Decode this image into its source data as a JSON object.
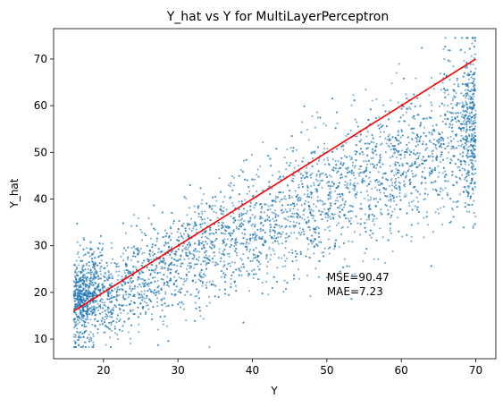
{
  "chart_data": {
    "type": "scatter",
    "title": "Y_hat vs Y for MultiLayerPerceptron",
    "xlabel": "Y",
    "ylabel": "Y_hat",
    "xlim": [
      13.3,
      72.7
    ],
    "ylim": [
      5.8,
      76.5
    ],
    "xticks": [
      20,
      30,
      40,
      50,
      60,
      70
    ],
    "yticks": [
      10,
      20,
      30,
      40,
      50,
      60,
      70
    ],
    "grid": false,
    "series": [
      {
        "kind": "scatter",
        "color": "#1f77b4",
        "point_count_approx": 5000,
        "x_range": [
          16,
          70
        ],
        "trend": {
          "slope": 0.72,
          "intercept": 4.5
        },
        "residual_sd": 8.5
      },
      {
        "kind": "line",
        "color": "#ff0000",
        "x": [
          16,
          70
        ],
        "y": [
          16,
          70
        ]
      }
    ],
    "annotations": [
      "MSE=90.47",
      "MAE=7.23"
    ],
    "annotation_position": {
      "x": 50,
      "y": 22.5
    }
  }
}
